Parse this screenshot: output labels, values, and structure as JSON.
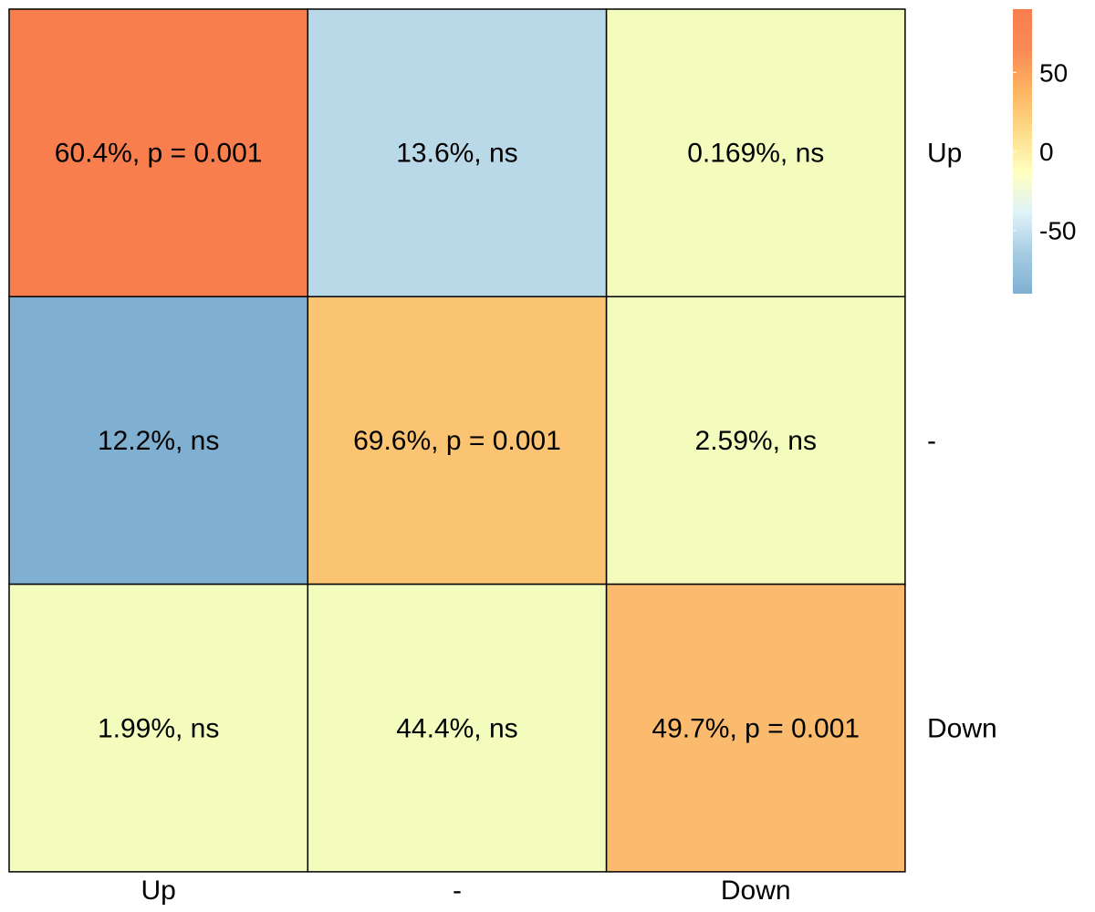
{
  "chart_data": {
    "type": "heatmap",
    "title": "",
    "xlabel": "",
    "ylabel": "",
    "rows": [
      "Up",
      "-",
      "Down"
    ],
    "columns": [
      "Up",
      "-",
      "Down"
    ],
    "values": [
      [
        90,
        -50,
        0
      ],
      [
        -85,
        60,
        2
      ],
      [
        1,
        5,
        68
      ]
    ],
    "cell_labels": [
      [
        "60.4%, p = 0.001",
        "13.6%, ns",
        "0.169%, ns"
      ],
      [
        "12.2%, ns",
        "69.6%, p = 0.001",
        "2.59%, ns"
      ],
      [
        "1.99%, ns",
        "44.4%, ns",
        "49.7%, p = 0.001"
      ]
    ],
    "color_scale": {
      "range": [
        -90,
        90
      ],
      "ticks": [
        50,
        0,
        -50
      ],
      "tick_labels": [
        "50",
        "0",
        "-50"
      ],
      "colors": [
        "#7FB0D2",
        "#A6CCE3",
        "#E0F3F8",
        "#FFFFBF",
        "#FDDB88",
        "#FDB462",
        "#F98A56",
        "#F97E4E"
      ],
      "orientation": "vertical",
      "placement": "top-right"
    },
    "cell_colors": [
      [
        "#F97E4E",
        "#BAD9E8",
        "#F3FCBD"
      ],
      [
        "#7FB0D2",
        "#FBC472",
        "#F3FCBD"
      ],
      [
        "#F3FCBD",
        "#F3FCBD",
        "#FBBB6E"
      ]
    ],
    "border_color": "#000000"
  }
}
